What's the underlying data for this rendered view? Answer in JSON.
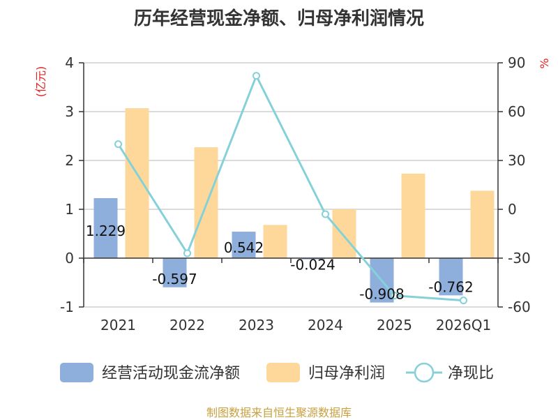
{
  "title": "历年经营现金净额、归母净利润情况",
  "source": "制图数据来自恒生聚源数据库",
  "chart_data": {
    "type": "bar",
    "categories": [
      "2021",
      "2022",
      "2023",
      "2024",
      "2025",
      "2026Q1"
    ],
    "series": [
      {
        "name": "经营活动现金流净额",
        "kind": "bar",
        "axis": "left",
        "color": "#8eaedb",
        "values": [
          1.229,
          -0.597,
          0.542,
          -0.024,
          -0.908,
          -0.762
        ],
        "labels": [
          "1.229",
          "-0.597",
          "0.542",
          "-0.024",
          "-0.908",
          "-0.762"
        ]
      },
      {
        "name": "归母净利润",
        "kind": "bar",
        "axis": "left",
        "color": "#fdd89a",
        "values": [
          3.07,
          2.27,
          0.68,
          1.0,
          1.73,
          1.38
        ]
      },
      {
        "name": "净现比",
        "kind": "line",
        "axis": "right",
        "color": "#86d1d8",
        "values": [
          40,
          -27,
          82,
          -3,
          -53,
          -56
        ]
      }
    ],
    "y_left": {
      "label": "(亿元)",
      "ylim": [
        -1,
        4
      ],
      "ticks": [
        "4",
        "3",
        "2",
        "1",
        "0",
        "-1"
      ],
      "tick_values": [
        4,
        3,
        2,
        1,
        0,
        -1
      ]
    },
    "y_right": {
      "label": "%",
      "ylim": [
        -60,
        90
      ],
      "ticks": [
        "90",
        "60",
        "30",
        "0",
        "-30",
        "-60"
      ],
      "tick_values": [
        90,
        60,
        30,
        0,
        -30,
        -60
      ]
    },
    "grid": true,
    "legend_position": "bottom"
  }
}
